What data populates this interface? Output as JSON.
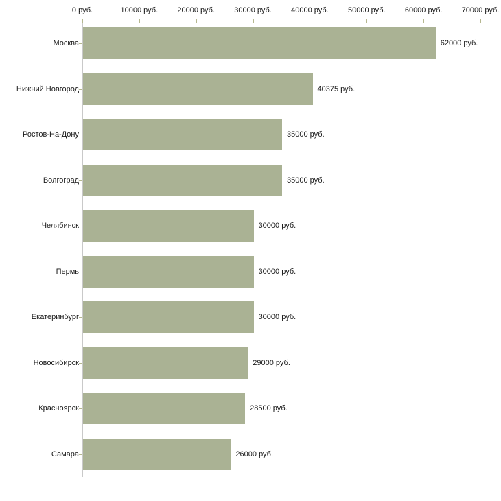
{
  "chart_data": {
    "type": "bar",
    "orientation": "horizontal",
    "title": "",
    "xlabel": "",
    "ylabel": "",
    "grid": false,
    "legend": false,
    "categories": [
      "Москва",
      "Нижний Новгород",
      "Ростов-На-Дону",
      "Волгоград",
      "Челябинск",
      "Пермь",
      "Екатеринбург",
      "Новосибирск",
      "Красноярск",
      "Самара"
    ],
    "values": [
      62000,
      40375,
      35000,
      35000,
      30000,
      30000,
      30000,
      29000,
      28500,
      26000
    ],
    "value_labels": [
      "62000 руб.",
      "40375 руб.",
      "35000 руб.",
      "35000 руб.",
      "30000 руб.",
      "30000 руб.",
      "30000 руб.",
      "29000 руб.",
      "28500 руб.",
      "26000 руб."
    ],
    "x_axis": {
      "min": 0,
      "max": 70000,
      "tick_interval": 10000,
      "tick_labels": [
        "0 руб.",
        "10000 руб.",
        "20000 руб.",
        "30000 руб.",
        "40000 руб.",
        "50000 руб.",
        "60000 руб.",
        "70000 руб."
      ]
    },
    "colors": {
      "bar": "#aab294",
      "axis_line": "#c9c9c9",
      "tick": "#b5b78f",
      "text": "#1a1a1a",
      "background": "#ffffff"
    }
  }
}
